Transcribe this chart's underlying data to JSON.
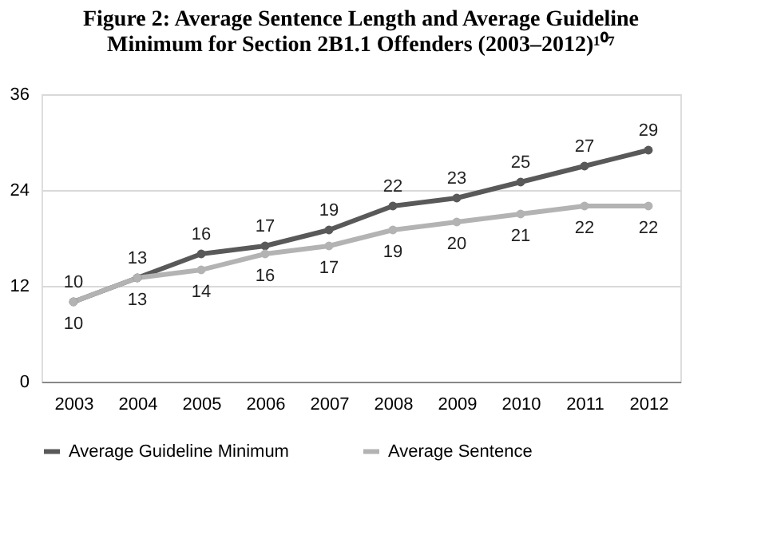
{
  "chart_data": {
    "type": "line",
    "title": "Figure 2: Average Sentence Length and Average Guideline Minimum for Section 2B1.1 Offenders (2003–2012)¹⁰⁷",
    "categories": [
      "2003",
      "2004",
      "2005",
      "2006",
      "2007",
      "2008",
      "2009",
      "2010",
      "2011",
      "2012"
    ],
    "series": [
      {
        "name": "Average Guideline Minimum",
        "color": "#595959",
        "values": [
          10,
          13,
          16,
          17,
          19,
          22,
          23,
          25,
          27,
          29
        ]
      },
      {
        "name": "Average Sentence",
        "color": "#b3b3b3",
        "values": [
          10,
          13,
          14,
          16,
          17,
          19,
          20,
          21,
          22,
          22
        ]
      }
    ],
    "ylim": [
      0,
      36
    ],
    "yticks": [
      0,
      12,
      24,
      36
    ],
    "grid": "y",
    "legend": "bottom",
    "marker": "circle",
    "line_style": "solid",
    "data_labels": true
  }
}
